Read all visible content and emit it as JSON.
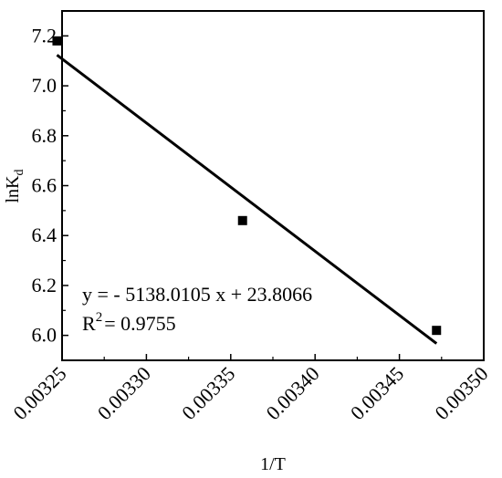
{
  "chart_data": {
    "type": "scatter",
    "title": "",
    "xlabel": "1/T",
    "ylabel": {
      "base": "lnK",
      "sub": "d"
    },
    "xlim": [
      0.00325,
      0.0035
    ],
    "ylim": [
      5.9,
      7.3
    ],
    "xticks": [
      "0.00325",
      "0.00330",
      "0.00335",
      "0.00340",
      "0.00345",
      "0.00350"
    ],
    "yticks": [
      "6.0",
      "6.2",
      "6.4",
      "6.6",
      "6.8",
      "7.0",
      "7.2"
    ],
    "grid": false,
    "series": [
      {
        "marker": "square",
        "color": "#000000",
        "points": [
          {
            "x": 0.003247,
            "y": 7.18
          },
          {
            "x": 0.003357,
            "y": 6.46
          },
          {
            "x": 0.003472,
            "y": 6.02
          }
        ]
      }
    ],
    "fit_line": {
      "slope": -5138.0105,
      "intercept": 23.8066,
      "x_range": [
        0.003247,
        0.003472
      ],
      "color": "#000000"
    },
    "annotations": {
      "equation": "y = - 5138.0105 x + 23.8066",
      "r2_base": "R",
      "r2_sup": "2",
      "r2_value": "= 0.9755"
    }
  }
}
